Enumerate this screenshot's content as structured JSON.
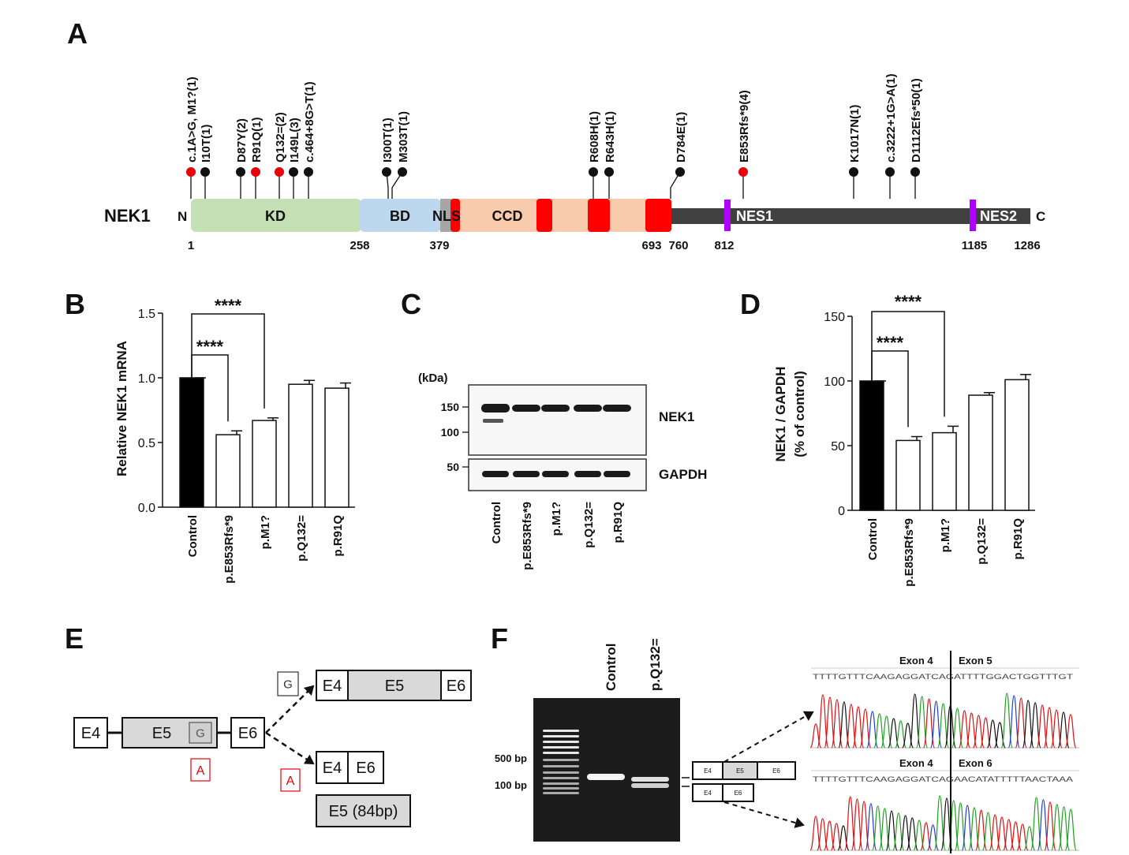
{
  "panel_labels": [
    "A",
    "B",
    "C",
    "D",
    "E",
    "F"
  ],
  "protein": {
    "name": "NEK1",
    "n_term": "N",
    "c_term": "C",
    "domains": [
      "KD",
      "BD",
      "NLS",
      "CCD",
      "NES1",
      "NES2"
    ],
    "positions": [
      1,
      258,
      379,
      693,
      760,
      812,
      1185,
      1286
    ],
    "mutations": [
      {
        "label": "c.1A>G, M1?(1)",
        "color": "#e8000b"
      },
      {
        "label": "I10T(1)",
        "color": "#111111"
      },
      {
        "label": "D87Y(2)",
        "color": "#111111"
      },
      {
        "label": "R91Q(1)",
        "color": "#e8000b"
      },
      {
        "label": "Q132=(2)",
        "color": "#e8000b"
      },
      {
        "label": "I149L(3)",
        "color": "#111111"
      },
      {
        "label": "c.464+8G>T(1)",
        "color": "#111111"
      },
      {
        "label": "I300T(1)",
        "color": "#111111"
      },
      {
        "label": "M303T(1)",
        "color": "#111111"
      },
      {
        "label": "R608H(1)",
        "color": "#111111"
      },
      {
        "label": "R643H(1)",
        "color": "#111111"
      },
      {
        "label": "D784E(1)",
        "color": "#111111"
      },
      {
        "label": "E853Rfs*9(4)",
        "color": "#e8000b"
      },
      {
        "label": "K1017N(1)",
        "color": "#111111"
      },
      {
        "label": "c.3222+1G>A(1)",
        "color": "#111111"
      },
      {
        "label": "D1112Efs*50(1)",
        "color": "#111111"
      }
    ]
  },
  "chart_data": [
    {
      "type": "bar",
      "y_label": "Relative NEK1 mRNA",
      "categories": [
        "Control",
        "p.E853Rfs*9",
        "p.M1?",
        "p.Q132=",
        "p.R91Q"
      ],
      "values": [
        1.0,
        0.56,
        0.67,
        0.95,
        0.92
      ],
      "errors": [
        0,
        0.03,
        0.02,
        0.03,
        0.04
      ],
      "colors": [
        "#000000",
        "#ffffff",
        "#ffffff",
        "#ffffff",
        "#ffffff"
      ],
      "ylim": [
        0,
        1.5
      ],
      "yticks": [
        {
          "value": 0,
          "label": "0.0"
        },
        0.5,
        {
          "value": 1,
          "label": "1.0"
        },
        1.5
      ],
      "annotations": [
        "****",
        "****"
      ]
    },
    {
      "type": "bar",
      "y_label": [
        "NEK1 / GAPDH",
        "(% of control)"
      ],
      "categories": [
        "Control",
        "p.E853Rfs*9",
        "p.M1?",
        "p.Q132=",
        "p.R91Q"
      ],
      "values": [
        100,
        54,
        60,
        89,
        101
      ],
      "errors": [
        0,
        3,
        5,
        2,
        4
      ],
      "colors": [
        "#000000",
        "#ffffff",
        "#ffffff",
        "#ffffff",
        "#ffffff"
      ],
      "ylim": [
        0,
        150
      ],
      "yticks": [
        0,
        50,
        100,
        150
      ],
      "annotations": [
        "****",
        "****"
      ]
    }
  ],
  "blot": {
    "unit": "(kDa)",
    "markers": [
      "150",
      "100",
      "50"
    ],
    "proteins": [
      "NEK1",
      "GAPDH"
    ],
    "lanes": [
      "Control",
      "p.E853Rfs*9",
      "p.M1?",
      "p.Q132=",
      "p.R91Q"
    ]
  },
  "splicing": {
    "genomic": [
      "E4",
      "E5",
      "G",
      "E6"
    ],
    "variant_base": "A",
    "normal": {
      "base": "G",
      "exons": [
        "E4",
        "E5",
        "E6"
      ]
    },
    "variant": {
      "base": "A",
      "exons": [
        "E4",
        "E6"
      ],
      "skipped": "E5 (84bp)"
    }
  },
  "gel": {
    "lanes": [
      "Control",
      "p.Q132="
    ],
    "sizes": [
      "500 bp",
      "100 bp"
    ],
    "products": [
      [
        "E4",
        "E5",
        "E6"
      ],
      [
        "E4",
        "E6"
      ]
    ],
    "traces": [
      {
        "exons": [
          "Exon 4",
          "Exon 5"
        ],
        "sequence": "TTTTGTTTCAAGAGGATCAGATTTTGGACTGGTTTGT"
      },
      {
        "exons": [
          "Exon 4",
          "Exon 6"
        ],
        "sequence": "TTTTGTTTCAAGAGGATCAGAACATATTTTTAACTAAA"
      }
    ]
  }
}
